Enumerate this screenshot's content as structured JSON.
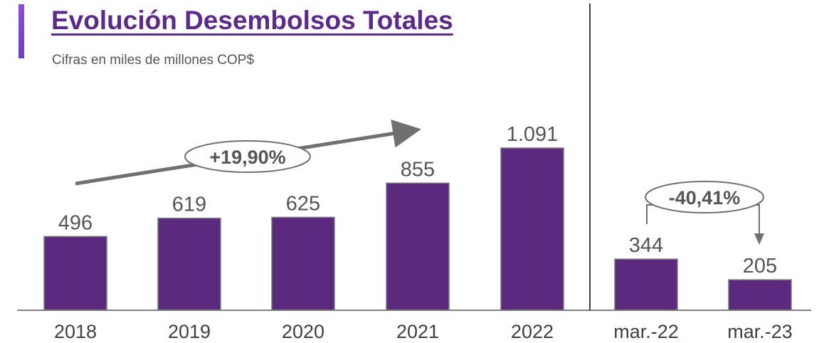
{
  "title": "Evolución Desembolsos Totales",
  "subtitle": "Cifras en miles de millones COP$",
  "colors": {
    "bar": "#5b2a7e",
    "bar_stroke": "#7a7a7a",
    "accent": "#7b45d6",
    "arrow": "#707070",
    "axis": "#808080"
  },
  "chart_data": {
    "type": "bar",
    "categories": [
      "2018",
      "2019",
      "2020",
      "2021",
      "2022",
      "mar.-22",
      "mar.-23"
    ],
    "values": [
      496,
      619,
      625,
      855,
      1091,
      344,
      205
    ],
    "value_labels": [
      "496",
      "619",
      "625",
      "855",
      "1.091",
      "344",
      "205"
    ],
    "title": "Evolución Desembolsos Totales",
    "subtitle": "Cifras en miles de millones COP$",
    "ylim": [
      0,
      1100
    ],
    "grid": false,
    "annotations": [
      {
        "text": "+19,90%",
        "from": "2018",
        "to": "2021",
        "trend": "up"
      },
      {
        "text": "-40,41%",
        "from": "mar.-22",
        "to": "mar.-23",
        "trend": "down"
      }
    ]
  }
}
